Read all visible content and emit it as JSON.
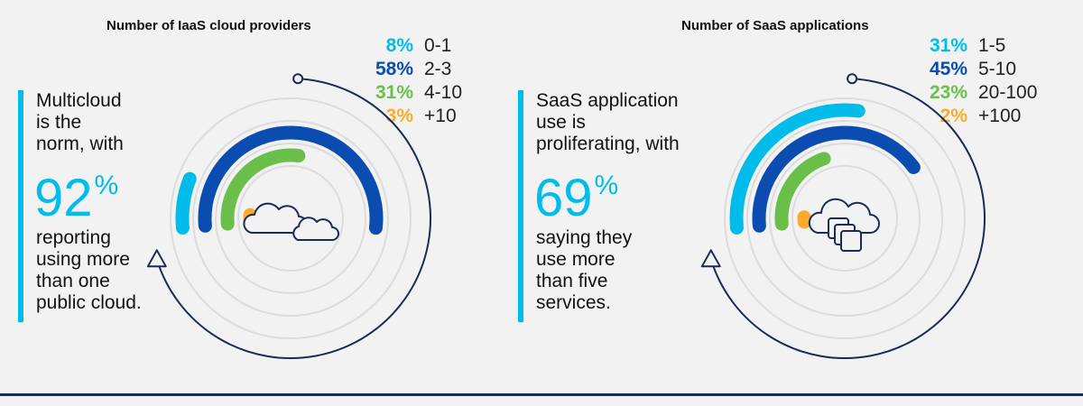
{
  "chart_data": [
    {
      "type": "radial-bar",
      "title": "Number of IaaS cloud providers",
      "categories": [
        "0-1",
        "2-3",
        "4-10",
        "+10"
      ],
      "values": [
        8,
        58,
        31,
        3
      ],
      "value_labels": [
        "8%",
        "58%",
        "31%",
        "3%"
      ],
      "colors": [
        "#00bceb",
        "#0b4cb0",
        "#6abf4b",
        "#fbab2c"
      ],
      "legend_position": "top-right",
      "callout": {
        "lines_before": [
          "Multicloud",
          "is the",
          "norm, with"
        ],
        "big_value": "92",
        "big_unit": "%",
        "lines_after": [
          "reporting",
          "using more",
          "than one",
          "public cloud."
        ]
      },
      "icon": "cloud-icon"
    },
    {
      "type": "radial-bar",
      "title": "Number of SaaS applications",
      "categories": [
        "1-5",
        "5-10",
        "20-100",
        "+100"
      ],
      "values": [
        31,
        45,
        23,
        2
      ],
      "value_labels": [
        "31%",
        "45%",
        "23%",
        "2%"
      ],
      "colors": [
        "#00bceb",
        "#0b4cb0",
        "#6abf4b",
        "#fbab2c"
      ],
      "legend_position": "top-right",
      "callout": {
        "lines_before": [
          "SaaS application",
          "use is",
          "proliferating, with"
        ],
        "big_value": "69",
        "big_unit": "%",
        "lines_after": [
          "saying they",
          "use more",
          "than five",
          "services."
        ]
      },
      "icon": "cloud-apps-icon"
    }
  ]
}
